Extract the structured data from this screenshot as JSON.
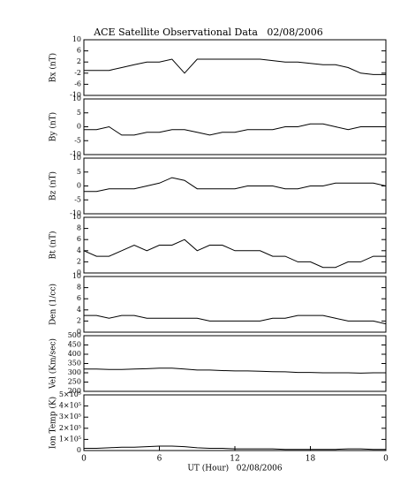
{
  "chart_data": [
    {
      "type": "line",
      "title": "ACE Satellite Observational Data   02/08/2006",
      "ylabel": "Bx (nT)",
      "x": [
        0,
        1,
        2,
        3,
        4,
        5,
        6,
        7,
        8,
        9,
        10,
        11,
        12,
        13,
        14,
        15,
        16,
        17,
        18,
        19,
        20,
        21,
        22,
        23,
        24
      ],
      "series": [
        {
          "color": "#000000",
          "values": [
            -1,
            -1,
            -1,
            0,
            1,
            2,
            2,
            3,
            -2,
            3,
            3,
            3,
            3,
            3,
            3,
            2.5,
            2,
            2,
            1.5,
            1,
            1,
            0,
            -2,
            -2.5,
            -2.5
          ]
        }
      ],
      "ylim": [
        -10,
        10
      ],
      "yticks": [
        -10,
        -6,
        -2,
        2,
        6,
        10
      ]
    },
    {
      "type": "line",
      "ylabel": "By (nT)",
      "x": [
        0,
        1,
        2,
        3,
        4,
        5,
        6,
        7,
        8,
        9,
        10,
        11,
        12,
        13,
        14,
        15,
        16,
        17,
        18,
        19,
        20,
        21,
        22,
        23,
        24
      ],
      "series": [
        {
          "color": "#000000",
          "values": [
            -1,
            -1,
            0,
            -3,
            -3,
            -2,
            -2,
            -1,
            -1,
            -2,
            -3,
            -2,
            -2,
            -1,
            -1,
            -1,
            0,
            0,
            1,
            1,
            0,
            -1,
            0,
            0,
            0
          ]
        }
      ],
      "ylim": [
        -10,
        10
      ],
      "yticks": [
        -10,
        -5,
        0,
        5,
        10
      ]
    },
    {
      "type": "line",
      "ylabel": "Bz (nT)",
      "x": [
        0,
        1,
        2,
        3,
        4,
        5,
        6,
        7,
        8,
        9,
        10,
        11,
        12,
        13,
        14,
        15,
        16,
        17,
        18,
        19,
        20,
        21,
        22,
        23,
        24
      ],
      "series": [
        {
          "color": "#000000",
          "values": [
            -2,
            -2,
            -1,
            -1,
            -1,
            0,
            1,
            3,
            2,
            -1,
            -1,
            -1,
            -1,
            0,
            0,
            0,
            -1,
            -1,
            0,
            0,
            1,
            1,
            1,
            1,
            0
          ]
        }
      ],
      "ylim": [
        -10,
        10
      ],
      "yticks": [
        -10,
        -5,
        0,
        5,
        10
      ]
    },
    {
      "type": "line",
      "ylabel": "Bt (nT)",
      "x": [
        0,
        1,
        2,
        3,
        4,
        5,
        6,
        7,
        8,
        9,
        10,
        11,
        12,
        13,
        14,
        15,
        16,
        17,
        18,
        19,
        20,
        21,
        22,
        23,
        24
      ],
      "series": [
        {
          "color": "#000000",
          "values": [
            4,
            3,
            3,
            4,
            5,
            4,
            5,
            5,
            6,
            4,
            5,
            5,
            4,
            4,
            4,
            3,
            3,
            2,
            2,
            1,
            1,
            2,
            2,
            3,
            3
          ]
        }
      ],
      "ylim": [
        0,
        10
      ],
      "yticks": [
        0,
        2,
        4,
        6,
        8,
        10
      ]
    },
    {
      "type": "line",
      "ylabel": "Den (1/cc)",
      "x": [
        0,
        1,
        2,
        3,
        4,
        5,
        6,
        7,
        8,
        9,
        10,
        11,
        12,
        13,
        14,
        15,
        16,
        17,
        18,
        19,
        20,
        21,
        22,
        23,
        24
      ],
      "series": [
        {
          "color": "#000000",
          "values": [
            3,
            3,
            2.5,
            3,
            3,
            2.5,
            2.5,
            2.5,
            2.5,
            2.5,
            2,
            2,
            2,
            2,
            2,
            2.5,
            2.5,
            3,
            3,
            3,
            2.5,
            2,
            2,
            2,
            1.5
          ]
        }
      ],
      "ylim": [
        0,
        10
      ],
      "yticks": [
        0,
        2,
        4,
        6,
        8,
        10
      ]
    },
    {
      "type": "line",
      "ylabel": "Vel (Km/sec)",
      "x": [
        0,
        1,
        2,
        3,
        4,
        5,
        6,
        7,
        8,
        9,
        10,
        11,
        12,
        13,
        14,
        15,
        16,
        17,
        18,
        19,
        20,
        21,
        22,
        23,
        24
      ],
      "series": [
        {
          "color": "#000000",
          "values": [
            320,
            320,
            318,
            318,
            320,
            322,
            325,
            325,
            320,
            315,
            315,
            312,
            310,
            310,
            308,
            306,
            305,
            302,
            302,
            300,
            300,
            300,
            298,
            300,
            300
          ]
        }
      ],
      "ylim": [
        200,
        500
      ],
      "yticks": [
        200,
        250,
        300,
        350,
        400,
        450,
        500
      ]
    },
    {
      "type": "line",
      "ylabel": "Ion Temp (K)",
      "xlabel": "UT (Hour)   02/08/2006",
      "x": [
        0,
        1,
        2,
        3,
        4,
        5,
        6,
        7,
        8,
        9,
        10,
        11,
        12,
        13,
        14,
        15,
        16,
        17,
        18,
        19,
        20,
        21,
        22,
        23,
        24
      ],
      "series": [
        {
          "color": "#000000",
          "values": [
            20000,
            20000,
            25000,
            30000,
            30000,
            35000,
            40000,
            40000,
            35000,
            25000,
            20000,
            20000,
            15000,
            15000,
            15000,
            15000,
            10000,
            10000,
            10000,
            10000,
            10000,
            15000,
            15000,
            10000,
            10000
          ]
        }
      ],
      "ylim": [
        0,
        500000
      ],
      "yticks": [
        0,
        {
          "value": 100000,
          "label": "1×10⁵"
        },
        {
          "value": 200000,
          "label": "2×10⁵"
        },
        {
          "value": 300000,
          "label": "3×10⁵"
        },
        {
          "value": 400000,
          "label": "4×10⁵"
        },
        {
          "value": 500000,
          "label": "5×10⁵"
        }
      ],
      "xlim": [
        0,
        24
      ],
      "xticks": [
        0,
        6,
        12,
        18,
        {
          "value": 24,
          "label": "0"
        }
      ]
    }
  ]
}
